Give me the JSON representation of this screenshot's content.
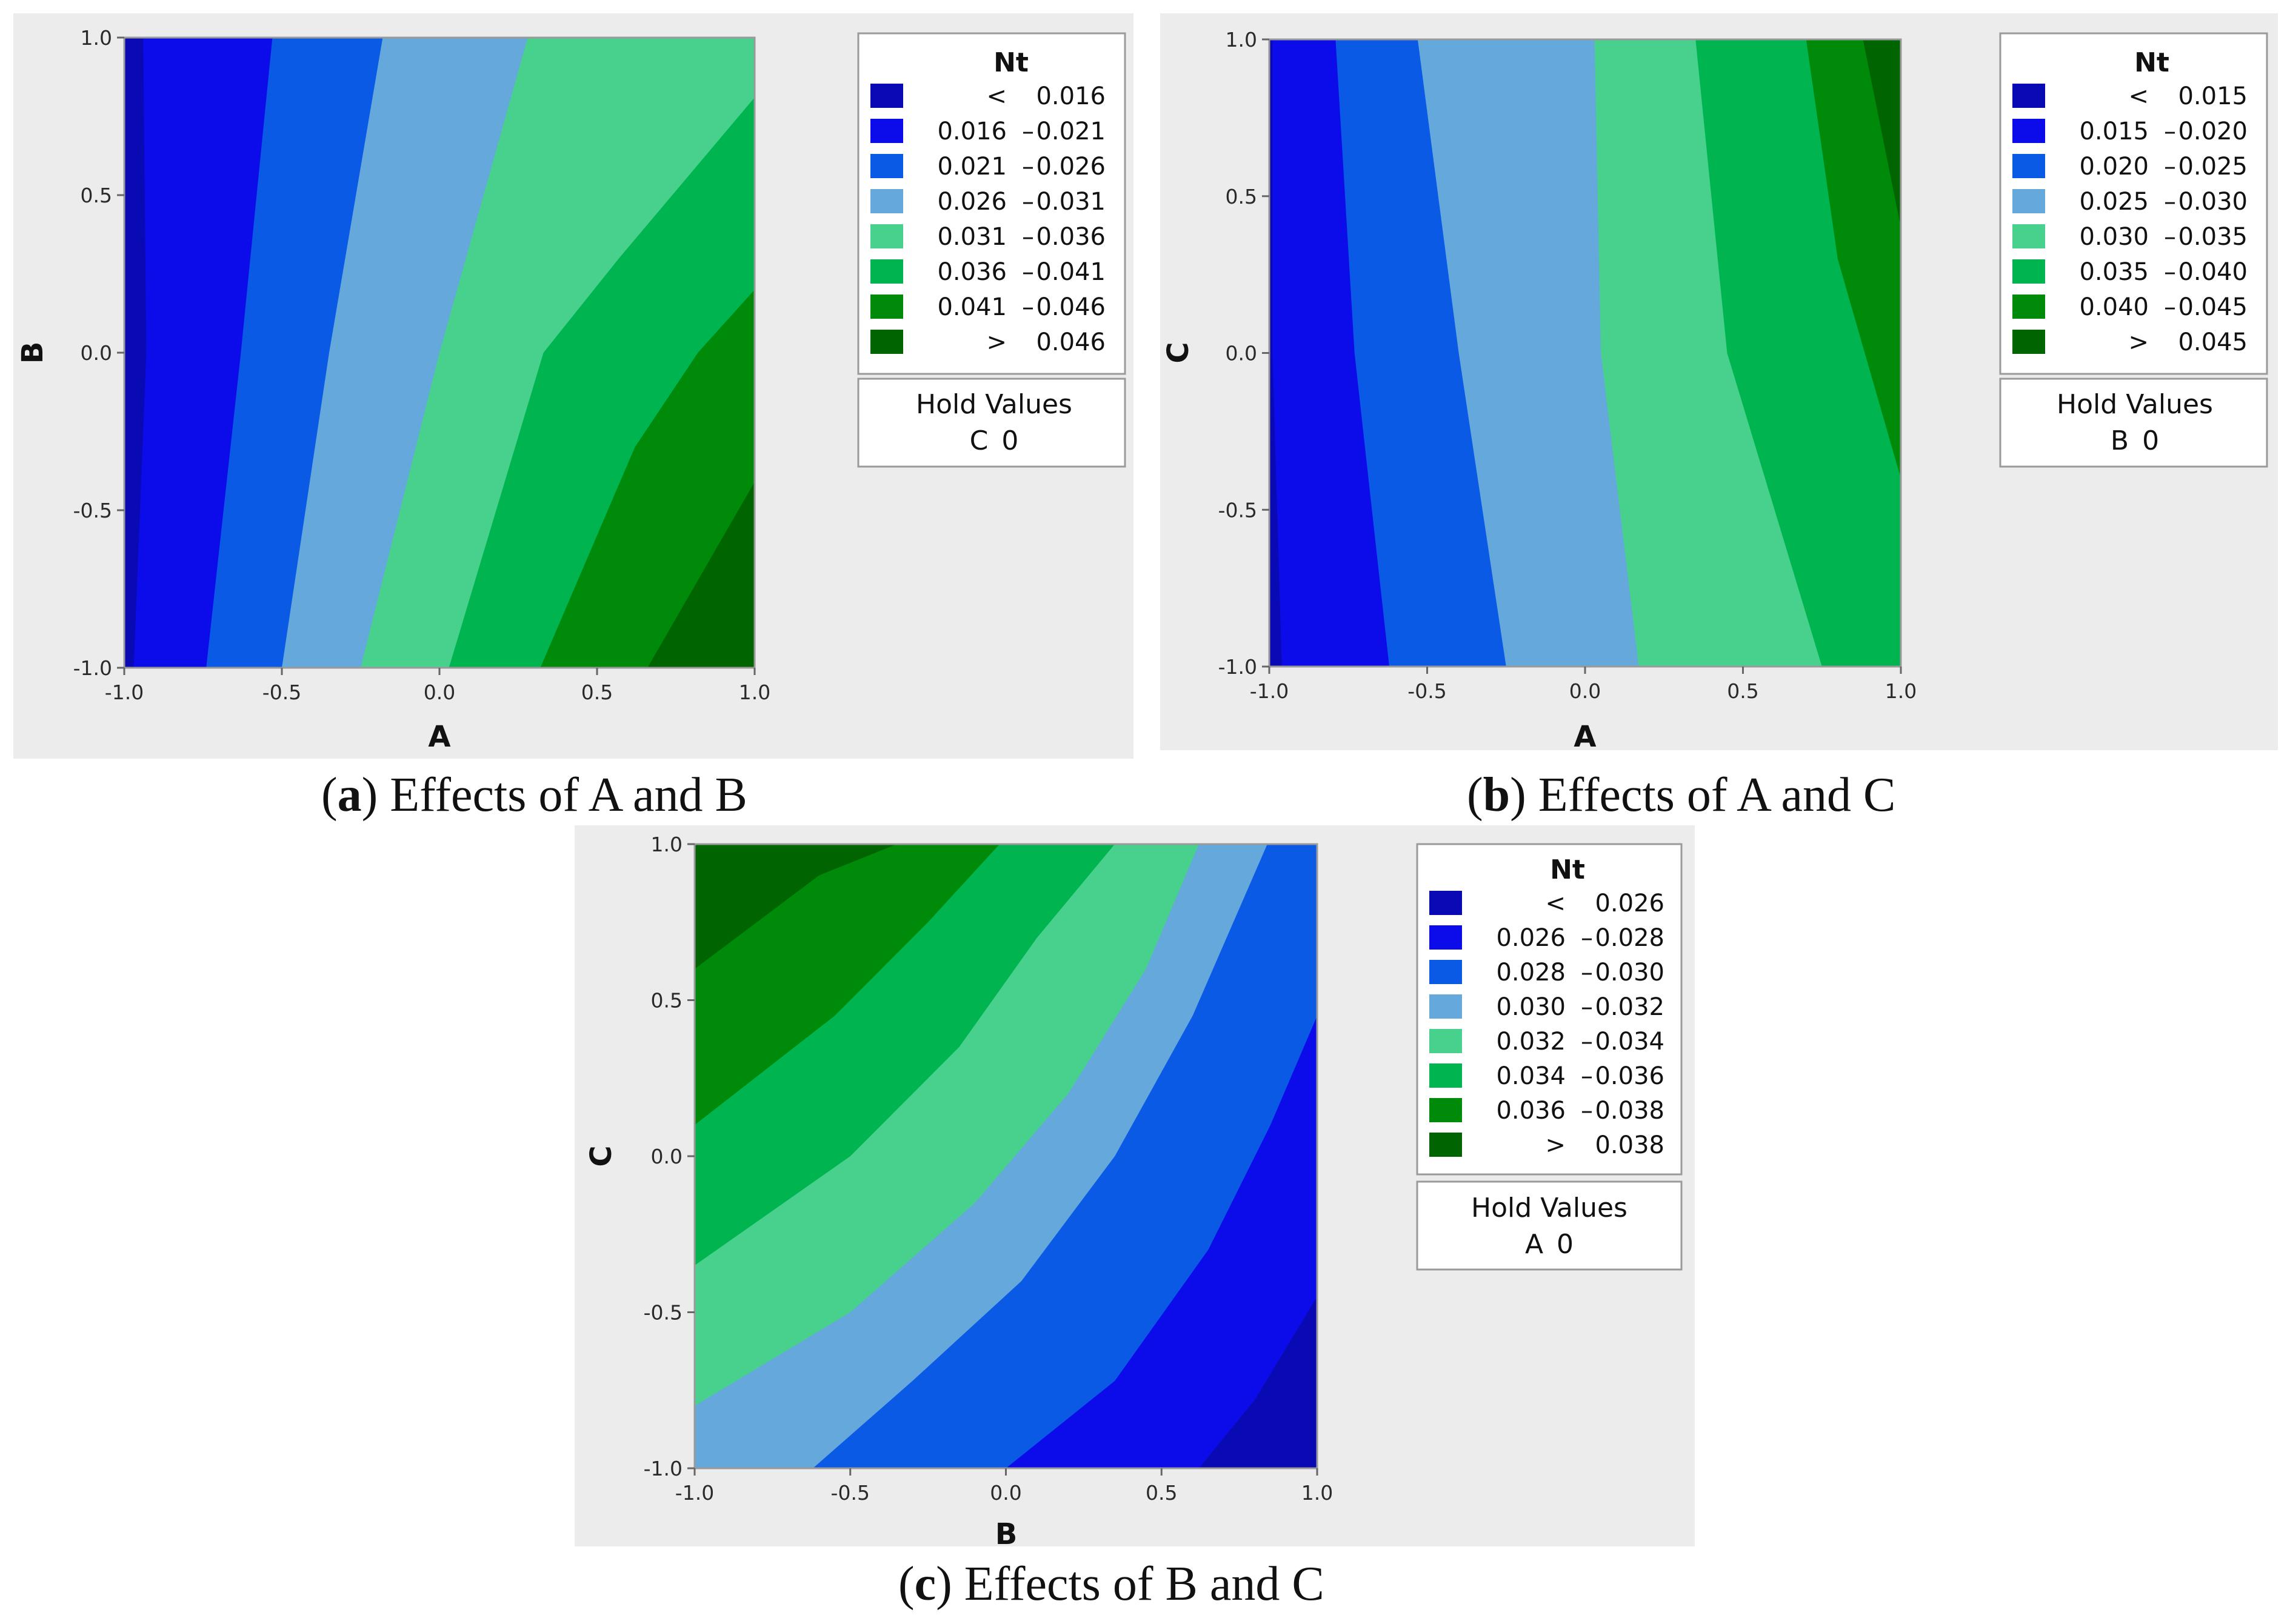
{
  "chart_data": [
    {
      "type": "contour",
      "caption": {
        "open": "(",
        "letter": "a",
        "close": ")",
        "text": " Effects of A and B"
      },
      "xlabel": "A",
      "ylabel": "B",
      "xlim": [
        -1.0,
        1.0
      ],
      "ylim": [
        -1.0,
        1.0
      ],
      "xticks": [
        "-1.0",
        "-0.5",
        "0.0",
        "0.5",
        "1.0"
      ],
      "yticks": [
        "-1.0",
        "-0.5",
        "0.0",
        "0.5",
        "1.0"
      ],
      "legend": {
        "title": "Nt",
        "items": [
          {
            "lo": "<",
            "hi": "0.016",
            "color": "#0a0ab4"
          },
          {
            "lo": "0.016",
            "hi": "0.021",
            "color": "#0c0ceb"
          },
          {
            "lo": "0.021",
            "hi": "0.026",
            "color": "#0a5ae6"
          },
          {
            "lo": "0.026",
            "hi": "0.031",
            "color": "#64a8dc"
          },
          {
            "lo": "0.031",
            "hi": "0.036",
            "color": "#48d18c"
          },
          {
            "lo": "0.036",
            "hi": "0.041",
            "color": "#00b450"
          },
          {
            "lo": "0.041",
            "hi": "0.046",
            "color": "#008a0a"
          },
          {
            "lo": ">",
            "hi": "0.046",
            "color": "#006400"
          }
        ]
      },
      "hold": {
        "title": "Hold Values",
        "variable": "C",
        "value": "0"
      },
      "boundaries": [
        {
          "x": [
            -0.94,
            -0.93,
            -0.97
          ],
          "y": [
            1.0,
            0.0,
            -1.0
          ]
        },
        {
          "x": [
            -0.53,
            -0.63,
            -0.74
          ],
          "y": [
            1.0,
            0.0,
            -1.0
          ]
        },
        {
          "x": [
            -0.18,
            -0.35,
            -0.5
          ],
          "y": [
            1.0,
            0.0,
            -1.0
          ]
        },
        {
          "x": [
            0.28,
            0.0,
            -0.25
          ],
          "y": [
            1.0,
            0.0,
            -1.0
          ]
        },
        {
          "x": [
            1.0,
            0.57,
            0.33,
            0.03
          ],
          "y": [
            0.81,
            0.3,
            0.0,
            -1.0
          ]
        },
        {
          "x": [
            1.0,
            0.82,
            0.62,
            0.32
          ],
          "y": [
            0.2,
            0.0,
            -0.3,
            -1.0
          ]
        },
        {
          "x": [
            1.0,
            0.66
          ],
          "y": [
            -0.41,
            -1.0
          ]
        }
      ]
    },
    {
      "type": "contour",
      "caption": {
        "open": "(",
        "letter": "b",
        "close": ")",
        "text": " Effects of A and C"
      },
      "xlabel": "A",
      "ylabel": "C",
      "xlim": [
        -1.0,
        1.0
      ],
      "ylim": [
        -1.0,
        1.0
      ],
      "xticks": [
        "-1.0",
        "-0.5",
        "0.0",
        "0.5",
        "1.0"
      ],
      "yticks": [
        "-1.0",
        "-0.5",
        "0.0",
        "0.5",
        "1.0"
      ],
      "legend": {
        "title": "Nt",
        "items": [
          {
            "lo": "<",
            "hi": "0.015",
            "color": "#0a0ab4"
          },
          {
            "lo": "0.015",
            "hi": "0.020",
            "color": "#0c0ceb"
          },
          {
            "lo": "0.020",
            "hi": "0.025",
            "color": "#0a5ae6"
          },
          {
            "lo": "0.025",
            "hi": "0.030",
            "color": "#64a8dc"
          },
          {
            "lo": "0.030",
            "hi": "0.035",
            "color": "#48d18c"
          },
          {
            "lo": "0.035",
            "hi": "0.040",
            "color": "#00b450"
          },
          {
            "lo": "0.040",
            "hi": "0.045",
            "color": "#008a0a"
          },
          {
            "lo": ">",
            "hi": "0.045",
            "color": "#006400"
          }
        ]
      },
      "hold": {
        "title": "Hold Values",
        "variable": "B",
        "value": "0"
      },
      "boundaries": [
        {
          "x": [
            -0.99,
            -0.99,
            -0.96
          ],
          "y": [
            1.0,
            0.0,
            -1.0
          ]
        },
        {
          "x": [
            -0.79,
            -0.73,
            -0.62
          ],
          "y": [
            1.0,
            0.0,
            -1.0
          ]
        },
        {
          "x": [
            -0.53,
            -0.4,
            -0.25
          ],
          "y": [
            1.0,
            0.0,
            -1.0
          ]
        },
        {
          "x": [
            0.03,
            0.05,
            0.17
          ],
          "y": [
            1.0,
            0.0,
            -1.0
          ]
        },
        {
          "x": [
            0.35,
            0.45,
            0.75
          ],
          "y": [
            1.0,
            0.0,
            -1.0
          ]
        },
        {
          "x": [
            0.7,
            0.8,
            1.0
          ],
          "y": [
            1.0,
            0.3,
            -0.4
          ]
        },
        {
          "x": [
            0.88,
            1.0
          ],
          "y": [
            1.0,
            0.4
          ]
        }
      ]
    },
    {
      "type": "contour",
      "caption": {
        "open": "(",
        "letter": "c",
        "close": ")",
        "text": " Effects of B and C"
      },
      "xlabel": "B",
      "ylabel": "C",
      "xlim": [
        -1.0,
        1.0
      ],
      "ylim": [
        -1.0,
        1.0
      ],
      "xticks": [
        "-1.0",
        "-0.5",
        "0.0",
        "0.5",
        "1.0"
      ],
      "yticks": [
        "-1.0",
        "-0.5",
        "0.0",
        "0.5",
        "1.0"
      ],
      "legend": {
        "title": "Nt",
        "items": [
          {
            "lo": "<",
            "hi": "0.026",
            "color": "#0a0ab4"
          },
          {
            "lo": "0.026",
            "hi": "0.028",
            "color": "#0c0ceb"
          },
          {
            "lo": "0.028",
            "hi": "0.030",
            "color": "#0a5ae6"
          },
          {
            "lo": "0.030",
            "hi": "0.032",
            "color": "#64a8dc"
          },
          {
            "lo": "0.032",
            "hi": "0.034",
            "color": "#48d18c"
          },
          {
            "lo": "0.034",
            "hi": "0.036",
            "color": "#00b450"
          },
          {
            "lo": "0.036",
            "hi": "0.038",
            "color": "#008a0a"
          },
          {
            "lo": ">",
            "hi": "0.038",
            "color": "#006400"
          }
        ]
      },
      "hold": {
        "title": "Hold Values",
        "variable": "A",
        "value": "0"
      },
      "boundaries": [
        {
          "x": [
            -1.0,
            -0.6,
            -0.35
          ],
          "y": [
            0.6,
            0.9,
            1.0
          ]
        },
        {
          "x": [
            -1.0,
            -0.55,
            -0.25,
            -0.02
          ],
          "y": [
            0.1,
            0.45,
            0.75,
            1.0
          ]
        },
        {
          "x": [
            -1.0,
            -0.5,
            -0.15,
            0.1,
            0.35
          ],
          "y": [
            -0.35,
            0.0,
            0.35,
            0.7,
            1.0
          ]
        },
        {
          "x": [
            -1.0,
            -0.5,
            -0.1,
            0.2,
            0.45,
            0.62
          ],
          "y": [
            -0.8,
            -0.5,
            -0.15,
            0.2,
            0.6,
            1.0
          ]
        },
        {
          "x": [
            -0.62,
            -0.3,
            0.05,
            0.35,
            0.6,
            0.84
          ],
          "y": [
            -1.0,
            -0.72,
            -0.4,
            0.0,
            0.45,
            1.0
          ]
        },
        {
          "x": [
            0.0,
            0.35,
            0.65,
            0.85,
            1.0
          ],
          "y": [
            -1.0,
            -0.72,
            -0.3,
            0.1,
            0.45
          ]
        },
        {
          "x": [
            0.62,
            0.8,
            1.0
          ],
          "y": [
            -1.0,
            -0.78,
            -0.45
          ]
        }
      ]
    }
  ]
}
